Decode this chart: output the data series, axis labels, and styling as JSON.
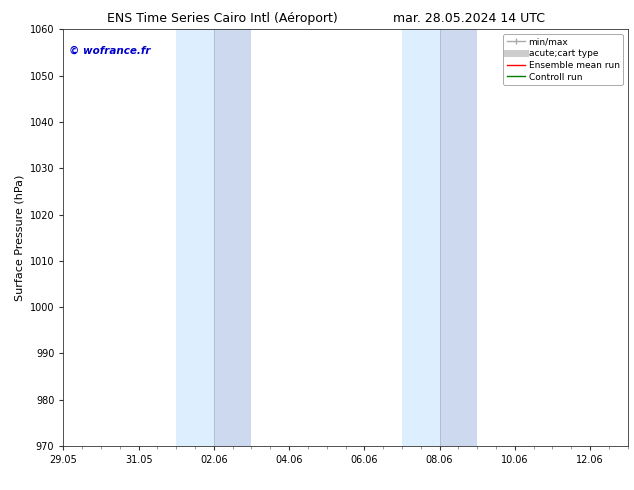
{
  "title_left": "ENS Time Series Cairo Intl (Aéroport)",
  "title_right": "mar. 28.05.2024 14 UTC",
  "ylabel": "Surface Pressure (hPa)",
  "ylim": [
    970,
    1060
  ],
  "yticks": [
    970,
    980,
    990,
    1000,
    1010,
    1020,
    1030,
    1040,
    1050,
    1060
  ],
  "xtick_labels": [
    "29.05",
    "31.05",
    "02.06",
    "04.06",
    "06.06",
    "08.06",
    "10.06",
    "12.06"
  ],
  "xtick_positions": [
    0,
    2,
    4,
    6,
    8,
    10,
    12,
    14
  ],
  "xlim": [
    0,
    15
  ],
  "shaded_regions": [
    {
      "start": 3,
      "end": 4,
      "color": "#ddeeff"
    },
    {
      "start": 4,
      "end": 5,
      "color": "#ccd9ee"
    },
    {
      "start": 9,
      "end": 10,
      "color": "#ddeeff"
    },
    {
      "start": 10,
      "end": 11,
      "color": "#ccd9ee"
    }
  ],
  "shaded_color": "#ddeeff",
  "watermark_text": "© wofrance.fr",
  "watermark_color": "#0000cc",
  "background_color": "#ffffff",
  "legend_items": [
    {
      "label": "min/max",
      "color": "#aaaaaa",
      "lw": 1.0
    },
    {
      "label": "acute;cart type",
      "color": "#cccccc",
      "lw": 5
    },
    {
      "label": "Ensemble mean run",
      "color": "#ff0000",
      "lw": 1.0
    },
    {
      "label": "Controll run",
      "color": "#008000",
      "lw": 1.0
    }
  ],
  "title_fontsize": 9,
  "tick_fontsize": 7,
  "label_fontsize": 8,
  "watermark_fontsize": 7.5,
  "legend_fontsize": 6.5
}
